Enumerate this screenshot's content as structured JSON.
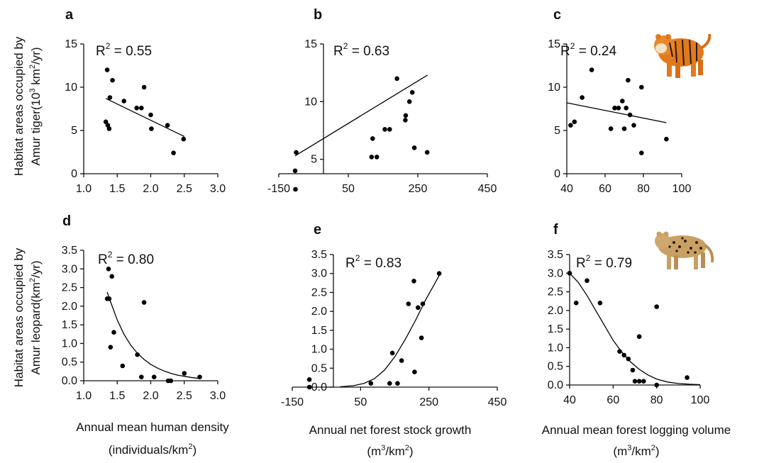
{
  "panels": [
    {
      "letter": "a",
      "r2_prefix": "R",
      "r2_sup": "2",
      "r2_value": " = 0.55",
      "xticks": [
        "1.0",
        "1.5",
        "2.0",
        "2.5",
        "3.0"
      ],
      "yticks": [
        "0",
        "5",
        "10",
        "15"
      ]
    },
    {
      "letter": "b",
      "r2_prefix": "R",
      "r2_sup": "2",
      "r2_value": " = 0.63",
      "xticks": [
        "-150",
        "50",
        "250",
        "450"
      ],
      "yticks": [
        "5",
        "10",
        "15"
      ]
    },
    {
      "letter": "c",
      "r2_prefix": "R",
      "r2_sup": "2",
      "r2_value": " = 0.24",
      "xticks": [
        "40",
        "60",
        "80",
        "100"
      ],
      "yticks": [
        "0",
        "5",
        "10",
        "15"
      ]
    },
    {
      "letter": "d",
      "r2_prefix": "R",
      "r2_sup": "2",
      "r2_value": " = 0.80",
      "xticks": [
        "1.0",
        "1.5",
        "2.0",
        "2.5",
        "3.0"
      ],
      "yticks": [
        "0.0",
        "0.5",
        "1.0",
        "1.5",
        "2.0",
        "2.5",
        "3.0",
        "3.5"
      ]
    },
    {
      "letter": "e",
      "r2_prefix": "R",
      "r2_sup": "2",
      "r2_value": " = 0.83",
      "xticks": [
        "-150",
        "50",
        "250",
        "450"
      ],
      "yticks": [
        "0.0",
        "0.5",
        "1.0",
        "1.5",
        "2.0",
        "2.5",
        "3.0",
        "3.5"
      ]
    },
    {
      "letter": "f",
      "r2_prefix": "R",
      "r2_sup": "2",
      "r2_value": " = 0.79",
      "xticks": [
        "40",
        "60",
        "80",
        "100"
      ],
      "yticks": [
        "0.0",
        "0.5",
        "1.0",
        "1.5",
        "2.0",
        "2.5",
        "3.0",
        "3.5"
      ]
    }
  ],
  "labels": {
    "y_tiger_line1": "Habitat areas occupied by",
    "y_tiger_line2_a": "Amur tiger(10",
    "y_tiger_line2_sup1": "3",
    "y_tiger_line2_b": " km",
    "y_tiger_line2_sup2": "2",
    "y_tiger_line2_c": "/yr)",
    "y_leopard_line1": "Habitat areas occupied by",
    "y_leopard_line2_a": "Amur leopard(km",
    "y_leopard_line2_sup": "2",
    "y_leopard_line2_b": "/yr)",
    "x_human_line1": "Annual mean human density",
    "x_human_line2_a": "(individuals/km",
    "x_human_line2_sup": "2",
    "x_human_line2_b": ")",
    "x_forest_line1": "Annual net forest stock growth",
    "x_forest_line2_a": "(m",
    "x_forest_line2_sup1": "3",
    "x_forest_line2_b": "/km",
    "x_forest_line2_sup2": "2",
    "x_forest_line2_c": ")",
    "x_logging_line1": "Annual mean forest logging volume",
    "x_logging_line2_a": "(m",
    "x_logging_line2_sup1": "3",
    "x_logging_line2_b": "/km",
    "x_logging_line2_sup2": "2",
    "x_logging_line2_c": ")"
  },
  "colors": {
    "points": "#000000",
    "tiger_orange": "#e07a1f",
    "leopard_tan": "#c9a063"
  },
  "images": [
    {
      "name": "tiger-icon",
      "panel": "c"
    },
    {
      "name": "leopard-icon",
      "panel": "f"
    }
  ],
  "chart_data": [
    {
      "panel": "a",
      "type": "scatter",
      "xlim": [
        1.0,
        3.0
      ],
      "ylim": [
        0,
        15
      ],
      "points": [
        [
          1.33,
          6.0
        ],
        [
          1.35,
          12.0
        ],
        [
          1.36,
          5.6
        ],
        [
          1.38,
          5.2
        ],
        [
          1.39,
          8.8
        ],
        [
          1.43,
          10.8
        ],
        [
          1.6,
          8.4
        ],
        [
          1.79,
          7.6
        ],
        [
          1.86,
          7.6
        ],
        [
          1.9,
          10.0
        ],
        [
          2.0,
          6.8
        ],
        [
          2.01,
          5.2
        ],
        [
          2.25,
          5.6
        ],
        [
          2.34,
          2.4
        ],
        [
          2.49,
          4.0
        ]
      ],
      "fit": {
        "kind": "linear",
        "points": [
          [
            1.33,
            8.7
          ],
          [
            2.5,
            4.3
          ]
        ]
      }
    },
    {
      "panel": "b",
      "type": "scatter",
      "xlim": [
        -150,
        450
      ],
      "ylim": [
        0,
        15
      ],
      "points": [
        [
          -103,
          4.0
        ],
        [
          -102,
          2.4
        ],
        [
          -100,
          5.6
        ],
        [
          117,
          5.2
        ],
        [
          120,
          6.8
        ],
        [
          132,
          5.2
        ],
        [
          155,
          7.6
        ],
        [
          169,
          7.6
        ],
        [
          190,
          12.0
        ],
        [
          214,
          8.4
        ],
        [
          215,
          8.8
        ],
        [
          226,
          10.0
        ],
        [
          234,
          10.8
        ],
        [
          240,
          6.0
        ],
        [
          277,
          5.6
        ]
      ],
      "fit": {
        "kind": "linear",
        "points": [
          [
            -103,
            5.3
          ],
          [
            278,
            12.3
          ]
        ]
      }
    },
    {
      "panel": "c",
      "type": "scatter",
      "xlim": [
        40,
        100
      ],
      "ylim": [
        0,
        15
      ],
      "points": [
        [
          42,
          5.6
        ],
        [
          44,
          6.0
        ],
        [
          48,
          8.8
        ],
        [
          53,
          12.0
        ],
        [
          63,
          5.2
        ],
        [
          65,
          7.6
        ],
        [
          67,
          7.6
        ],
        [
          69,
          8.4
        ],
        [
          70,
          5.2
        ],
        [
          71,
          7.6
        ],
        [
          72,
          10.8
        ],
        [
          73,
          6.8
        ],
        [
          75,
          5.6
        ],
        [
          79,
          10.0
        ],
        [
          79,
          2.4
        ],
        [
          92,
          4.0
        ]
      ],
      "fit": {
        "kind": "linear",
        "points": [
          [
            40,
            8.2
          ],
          [
            92,
            5.9
          ]
        ]
      }
    },
    {
      "panel": "d",
      "type": "scatter",
      "xlim": [
        1.0,
        3.0
      ],
      "ylim": [
        0,
        3.5
      ],
      "points": [
        [
          1.35,
          2.2
        ],
        [
          1.37,
          3.0
        ],
        [
          1.38,
          2.2
        ],
        [
          1.4,
          0.9
        ],
        [
          1.42,
          2.8
        ],
        [
          1.45,
          1.3
        ],
        [
          1.58,
          0.4
        ],
        [
          1.8,
          0.7
        ],
        [
          1.86,
          0.1
        ],
        [
          1.9,
          2.1
        ],
        [
          2.05,
          0.1
        ],
        [
          2.26,
          0.0
        ],
        [
          2.3,
          0.0
        ],
        [
          2.5,
          0.2
        ],
        [
          2.73,
          0.1
        ]
      ],
      "fit": {
        "kind": "exp",
        "points": [
          [
            1.35,
            2.38
          ],
          [
            1.4,
            2.12
          ],
          [
            1.5,
            1.63
          ],
          [
            1.6,
            1.25
          ],
          [
            1.7,
            0.96
          ],
          [
            1.8,
            0.74
          ],
          [
            1.9,
            0.57
          ],
          [
            2.0,
            0.44
          ],
          [
            2.1,
            0.34
          ],
          [
            2.2,
            0.26
          ],
          [
            2.3,
            0.2
          ],
          [
            2.4,
            0.15
          ],
          [
            2.5,
            0.12
          ],
          [
            2.6,
            0.09
          ],
          [
            2.73,
            0.06
          ]
        ]
      }
    },
    {
      "panel": "e",
      "type": "scatter",
      "xlim": [
        -150,
        450
      ],
      "ylim": [
        0,
        3.5
      ],
      "points": [
        [
          -100,
          0.2
        ],
        [
          -100,
          0.0
        ],
        [
          80,
          0.1
        ],
        [
          135,
          0.1
        ],
        [
          143,
          0.9
        ],
        [
          158,
          0.1
        ],
        [
          170,
          0.7
        ],
        [
          190,
          2.2
        ],
        [
          206,
          2.8
        ],
        [
          208,
          0.4
        ],
        [
          218,
          2.1
        ],
        [
          228,
          1.3
        ],
        [
          232,
          2.2
        ],
        [
          280,
          3.0
        ]
      ],
      "fit": {
        "kind": "logistic",
        "points": [
          [
            -10,
            0.01
          ],
          [
            30,
            0.04
          ],
          [
            60,
            0.1
          ],
          [
            90,
            0.22
          ],
          [
            120,
            0.45
          ],
          [
            150,
            0.8
          ],
          [
            180,
            1.25
          ],
          [
            210,
            1.75
          ],
          [
            240,
            2.3
          ],
          [
            265,
            2.7
          ],
          [
            280,
            2.95
          ]
        ]
      }
    },
    {
      "panel": "f",
      "type": "scatter",
      "xlim": [
        40,
        100
      ],
      "ylim": [
        0,
        3.5
      ],
      "points": [
        [
          40,
          3.0
        ],
        [
          43,
          2.2
        ],
        [
          48,
          2.8
        ],
        [
          54,
          2.2
        ],
        [
          63,
          0.9
        ],
        [
          65,
          0.8
        ],
        [
          67,
          0.7
        ],
        [
          69,
          0.4
        ],
        [
          70,
          0.1
        ],
        [
          72,
          0.1
        ],
        [
          72,
          1.3
        ],
        [
          74,
          0.1
        ],
        [
          80,
          0.0
        ],
        [
          80,
          2.1
        ],
        [
          94,
          0.2
        ]
      ],
      "fit": {
        "kind": "sigmoid",
        "points": [
          [
            40,
            3.0
          ],
          [
            44,
            2.75
          ],
          [
            48,
            2.4
          ],
          [
            52,
            2.0
          ],
          [
            56,
            1.6
          ],
          [
            60,
            1.2
          ],
          [
            64,
            0.88
          ],
          [
            68,
            0.62
          ],
          [
            72,
            0.42
          ],
          [
            76,
            0.27
          ],
          [
            80,
            0.16
          ],
          [
            85,
            0.08
          ],
          [
            90,
            0.04
          ],
          [
            95,
            0.02
          ],
          [
            100,
            0.01
          ]
        ]
      }
    }
  ]
}
